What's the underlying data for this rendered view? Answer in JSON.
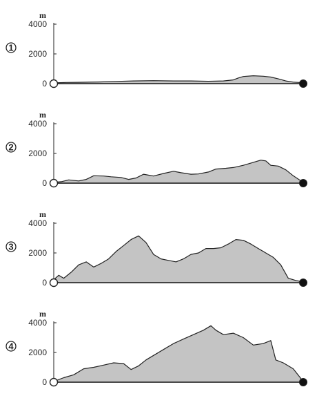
{
  "colors": {
    "fill": "#c4c4c4",
    "line": "#222222",
    "start_marker": "#ffffff",
    "end_marker": "#111111"
  },
  "chart_data": [
    {
      "type": "area",
      "label": "1",
      "unit": "m",
      "ylim": [
        0,
        4000
      ],
      "yticks": [
        "4000",
        "2000",
        "0"
      ],
      "x": [
        0,
        0.05,
        0.1,
        0.18,
        0.25,
        0.32,
        0.4,
        0.48,
        0.55,
        0.62,
        0.68,
        0.72,
        0.74,
        0.76,
        0.8,
        0.84,
        0.87,
        0.9,
        0.93,
        0.96,
        1.0
      ],
      "y": [
        50,
        80,
        90,
        110,
        150,
        180,
        200,
        180,
        180,
        160,
        180,
        250,
        380,
        480,
        530,
        500,
        440,
        320,
        180,
        100,
        60
      ]
    },
    {
      "type": "area",
      "label": "2",
      "unit": "m",
      "ylim": [
        0,
        4000
      ],
      "yticks": [
        "4000",
        "2000",
        "0"
      ],
      "x": [
        0,
        0.03,
        0.06,
        0.1,
        0.13,
        0.16,
        0.2,
        0.23,
        0.27,
        0.3,
        0.33,
        0.36,
        0.4,
        0.44,
        0.48,
        0.51,
        0.55,
        0.58,
        0.62,
        0.65,
        0.69,
        0.72,
        0.76,
        0.8,
        0.83,
        0.85,
        0.87,
        0.9,
        0.93,
        0.96,
        1.0
      ],
      "y": [
        50,
        100,
        220,
        150,
        250,
        500,
        480,
        430,
        380,
        250,
        350,
        600,
        480,
        650,
        800,
        700,
        600,
        620,
        750,
        950,
        1000,
        1050,
        1200,
        1400,
        1550,
        1500,
        1200,
        1150,
        900,
        500,
        50
      ]
    },
    {
      "type": "area",
      "label": "3",
      "unit": "m",
      "ylim": [
        0,
        4000
      ],
      "yticks": [
        "4000",
        "2000",
        "0"
      ],
      "x": [
        0,
        0.02,
        0.04,
        0.07,
        0.1,
        0.13,
        0.16,
        0.19,
        0.22,
        0.25,
        0.28,
        0.31,
        0.34,
        0.37,
        0.4,
        0.43,
        0.46,
        0.49,
        0.52,
        0.55,
        0.58,
        0.61,
        0.64,
        0.67,
        0.7,
        0.73,
        0.76,
        0.79,
        0.82,
        0.85,
        0.88,
        0.91,
        0.94,
        0.97,
        1.0
      ],
      "y": [
        200,
        500,
        300,
        700,
        1200,
        1400,
        1050,
        1300,
        1600,
        2100,
        2500,
        2900,
        3150,
        2700,
        1900,
        1600,
        1500,
        1400,
        1600,
        1900,
        2000,
        2300,
        2300,
        2350,
        2600,
        2900,
        2850,
        2600,
        2300,
        2000,
        1700,
        1200,
        300,
        150,
        50
      ]
    },
    {
      "type": "area",
      "label": "4",
      "unit": "m",
      "ylim": [
        0,
        4000
      ],
      "yticks": [
        "4000",
        "2000",
        "0"
      ],
      "x": [
        0,
        0.04,
        0.08,
        0.12,
        0.16,
        0.2,
        0.24,
        0.28,
        0.31,
        0.34,
        0.37,
        0.4,
        0.44,
        0.48,
        0.52,
        0.56,
        0.6,
        0.63,
        0.65,
        0.68,
        0.72,
        0.76,
        0.8,
        0.84,
        0.87,
        0.89,
        0.92,
        0.96,
        1.0
      ],
      "y": [
        50,
        300,
        500,
        900,
        1000,
        1150,
        1300,
        1250,
        850,
        1100,
        1500,
        1800,
        2200,
        2600,
        2900,
        3200,
        3500,
        3800,
        3500,
        3200,
        3300,
        3000,
        2500,
        2600,
        2800,
        1500,
        1300,
        900,
        50
      ]
    }
  ]
}
